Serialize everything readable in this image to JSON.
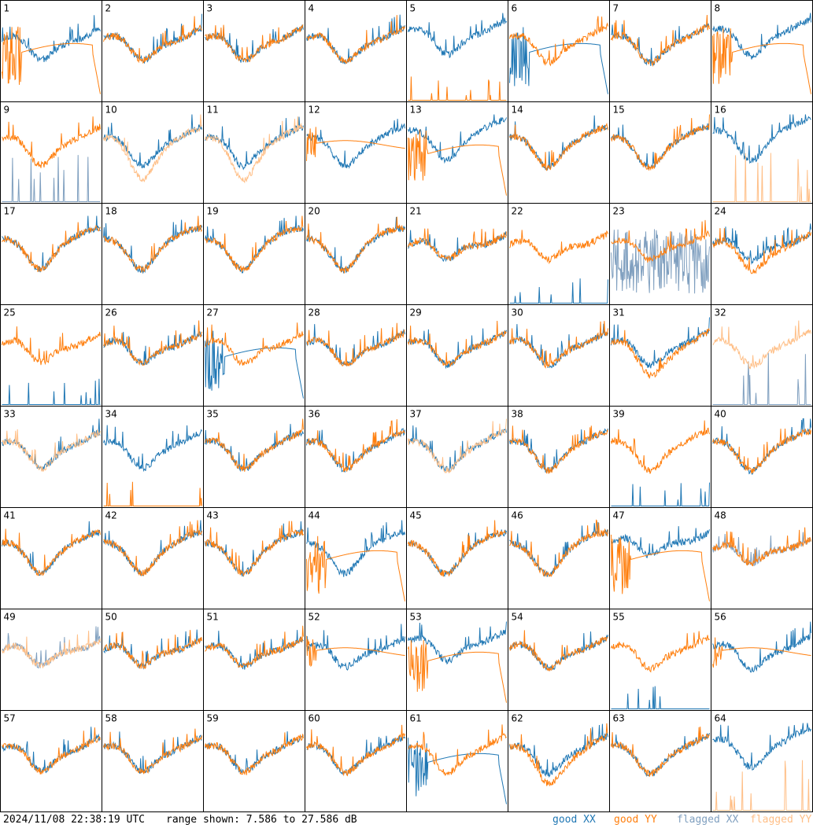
{
  "chart_data": {
    "type": "line",
    "panels": [
      "1",
      "2",
      "3",
      "4",
      "5",
      "6",
      "7",
      "8",
      "9",
      "10",
      "11",
      "12",
      "13",
      "14",
      "15",
      "16",
      "17",
      "18",
      "19",
      "20",
      "21",
      "22",
      "23",
      "24",
      "25",
      "26",
      "27",
      "28",
      "29",
      "30",
      "31",
      "32",
      "33",
      "34",
      "35",
      "36",
      "37",
      "38",
      "39",
      "40",
      "41",
      "42",
      "43",
      "44",
      "45",
      "46",
      "47",
      "48",
      "49",
      "50",
      "51",
      "52",
      "53",
      "54",
      "55",
      "56",
      "57",
      "58",
      "59",
      "60",
      "61",
      "62",
      "63",
      "64"
    ],
    "ylim": [
      7.586,
      27.586
    ],
    "yunit": "dB",
    "series": [
      {
        "name": "good XX",
        "color": "#1f77b4"
      },
      {
        "name": "good YY",
        "color": "#ff7f0e"
      },
      {
        "name": "flagged XX",
        "color": "#7f9fbf"
      },
      {
        "name": "flagged YY",
        "color": "#ffbf87"
      }
    ],
    "panel_profiles": {
      "1": {
        "xx": "normal",
        "yy": "smooth-tail"
      },
      "5": {
        "xx": "normal-high",
        "yy": "spikes"
      },
      "6": {
        "xx": "smooth-tail",
        "yy": "normal"
      },
      "8": {
        "xx": "normal-high",
        "yy": "smooth-tail"
      },
      "9": {
        "xx": "flag-spikes",
        "yy": "normal"
      },
      "10": {
        "xx": "normal",
        "yy": "flag-deep"
      },
      "11": {
        "xx": "normal",
        "yy": "flag-deep"
      },
      "12": {
        "xx": "normal",
        "yy": "smooth"
      },
      "13": {
        "xx": "normal-high",
        "yy": "smooth-tail"
      },
      "16": {
        "xx": "normal-high",
        "yy": "flag-spikes"
      },
      "22": {
        "xx": "spikes",
        "yy": "normal"
      },
      "23": {
        "xx": "flag-noisy",
        "yy": "normal"
      },
      "24": {
        "xx": "normal",
        "yy": "deep"
      },
      "25": {
        "xx": "spikes",
        "yy": "normal"
      },
      "27": {
        "xx": "smooth-tail",
        "yy": "normal"
      },
      "31": {
        "xx": "normal",
        "yy": "deep"
      },
      "32": {
        "xx": "flag-spikes",
        "yy": "flag-normal"
      },
      "33": {
        "xx": "normal",
        "yy": "flag-normal"
      },
      "34": {
        "xx": "normal",
        "yy": "spikes"
      },
      "37": {
        "xx": "normal",
        "yy": "flag-normal"
      },
      "39": {
        "xx": "spikes",
        "yy": "normal"
      },
      "44": {
        "xx": "normal",
        "yy": "smooth-tail"
      },
      "47": {
        "xx": "normal-high",
        "yy": "smooth-tail"
      },
      "48": {
        "xx": "flag-normal",
        "yy": "normal"
      },
      "49": {
        "xx": "flag-normal",
        "yy": "flag-normal"
      },
      "52": {
        "xx": "normal",
        "yy": "smooth"
      },
      "53": {
        "xx": "normal-high",
        "yy": "smooth-tail"
      },
      "55": {
        "xx": "spikes",
        "yy": "normal"
      },
      "56": {
        "xx": "normal",
        "yy": "smooth"
      },
      "61": {
        "xx": "smooth-tail",
        "yy": "normal"
      },
      "62": {
        "xx": "normal",
        "yy": "deep"
      },
      "64": {
        "xx": "normal-high",
        "yy": "flag-spikes"
      }
    }
  },
  "footer": {
    "timestamp": "2024/11/08 22:38:19 UTC",
    "range_text": "range shown: 7.586 to 27.586 dB",
    "legend": [
      {
        "label": "good XX",
        "color": "#1f77b4"
      },
      {
        "label": "good YY",
        "color": "#ff7f0e"
      },
      {
        "label": "flagged XX",
        "color": "#7f9fbf"
      },
      {
        "label": "flagged YY",
        "color": "#ffbf87"
      }
    ]
  }
}
